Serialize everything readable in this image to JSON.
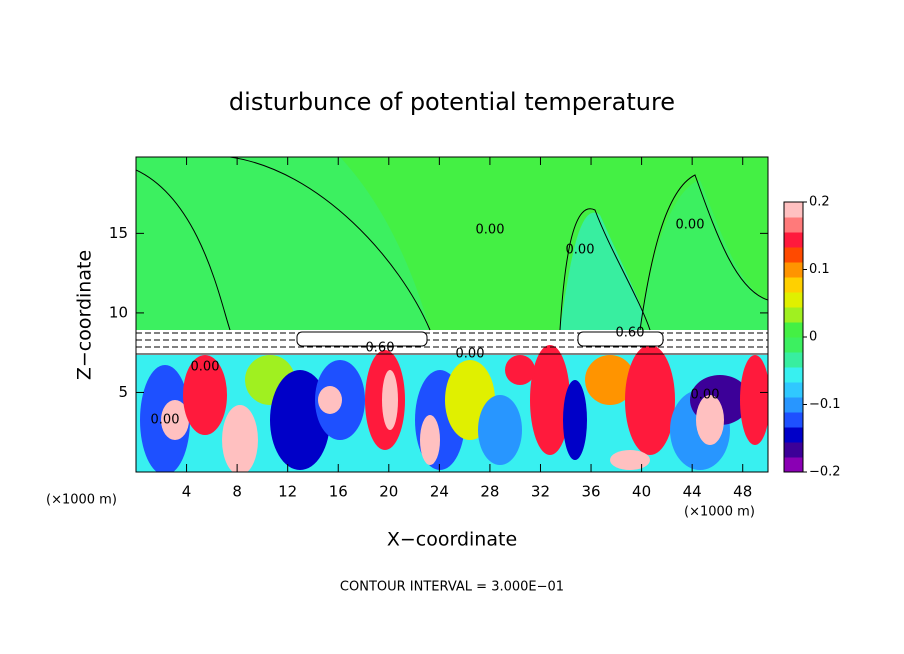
{
  "chart_data": {
    "type": "contour",
    "title": "disturbunce of potential temperature",
    "x_label": "X−coordinate",
    "y_label": "Z−coordinate",
    "x_unit_labels": [
      "(×1000 m)",
      "(×1000 m)"
    ],
    "footnote": "CONTOUR INTERVAL = 3.000E−01",
    "xlim": [
      0,
      50
    ],
    "ylim": [
      0,
      19.8
    ],
    "xticks": [
      4,
      8,
      12,
      16,
      20,
      24,
      28,
      32,
      36,
      40,
      44,
      48
    ],
    "yticks": [
      5,
      10,
      15
    ],
    "contour_labels": [
      "0.00",
      "0.00",
      "0.00",
      "0.00",
      "0.00",
      "0.60",
      "0.60",
      "0.00",
      "0.00"
    ],
    "colorbar": {
      "lim": [
        -0.2,
        0.2
      ],
      "ticks": [
        {
          "value": -0.2,
          "label": "−0.2"
        },
        {
          "value": -0.1,
          "label": "−0.1"
        },
        0,
        0.1,
        0.2
      ],
      "colors": [
        "#8a00b4",
        "#3c0098",
        "#0000c8",
        "#1e50ff",
        "#2896ff",
        "#30c8ff",
        "#38f0f0",
        "#38eea0",
        "#3cf060",
        "#44f044",
        "#a0f020",
        "#e0f000",
        "#ffd000",
        "#ff9400",
        "#ff4a00",
        "#ff1a3c",
        "#ff7a7a",
        "#ffc0c0"
      ]
    }
  }
}
